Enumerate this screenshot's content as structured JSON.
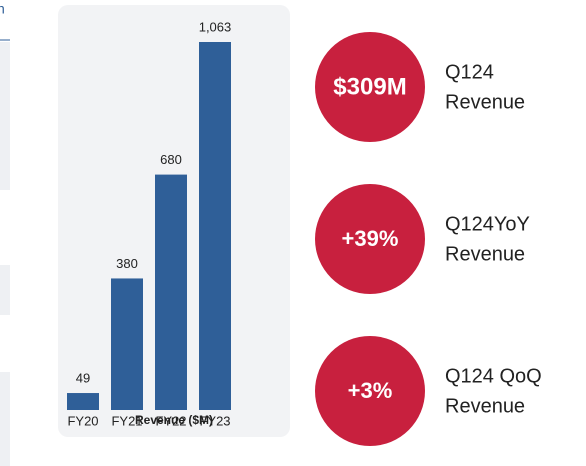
{
  "left_panel": {
    "fragment": "n"
  },
  "chart_data": {
    "type": "bar",
    "xlabel": "Revenue ($M)",
    "categories": [
      "FY20",
      "FY21",
      "FY22",
      "FY23"
    ],
    "values": [
      49,
      380,
      680,
      1063
    ],
    "value_labels": [
      "49",
      "380",
      "680",
      "1,063"
    ],
    "color": "#2f5f98"
  },
  "kpis": [
    {
      "value": "$309M",
      "label": [
        "Q124",
        "Revenue"
      ]
    },
    {
      "value": "+39%",
      "label": [
        "Q124YoY",
        "Revenue"
      ]
    },
    {
      "value": "+3%",
      "label": [
        "Q124 QoQ",
        "Revenue"
      ]
    }
  ]
}
